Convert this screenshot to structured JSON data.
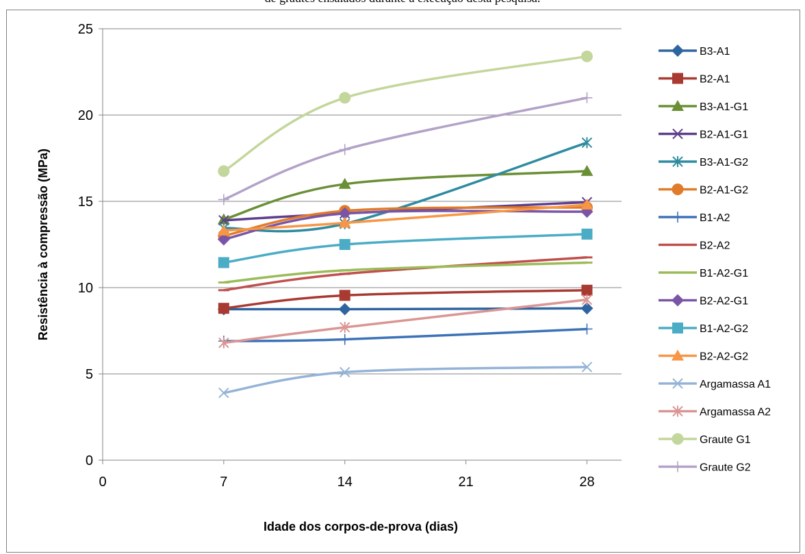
{
  "caption": "de grautes ensaiados durante a execução desta pesquisa.",
  "chart_data": {
    "type": "line",
    "xlabel": "Idade dos corpos-de-prova (dias)",
    "ylabel": "Resistência à compressão (MPa)",
    "xlim": [
      0,
      30
    ],
    "ylim": [
      0,
      25
    ],
    "xticks": [
      0,
      7,
      14,
      21,
      28
    ],
    "yticks": [
      0,
      5,
      10,
      15,
      20,
      25
    ],
    "grid": "horizontal",
    "legend_position": "right",
    "x": [
      7,
      14,
      28
    ],
    "series": [
      {
        "name": "B3-A1",
        "color": "#2e64a0",
        "marker": "diamond",
        "values": [
          8.75,
          8.75,
          8.8
        ]
      },
      {
        "name": "B2-A1",
        "color": "#a83a32",
        "marker": "square",
        "values": [
          8.8,
          9.55,
          9.85
        ]
      },
      {
        "name": "B3-A1-G1",
        "color": "#6a8f35",
        "marker": "triangle",
        "values": [
          13.95,
          16.0,
          16.75
        ]
      },
      {
        "name": "B2-A1-G1",
        "color": "#5e3f8c",
        "marker": "x",
        "values": [
          13.9,
          14.3,
          14.95
        ]
      },
      {
        "name": "B3-A1-G2",
        "color": "#2e8ba0",
        "marker": "asterisk",
        "values": [
          13.45,
          13.7,
          18.4
        ]
      },
      {
        "name": "B2-A1-G2",
        "color": "#e07b29",
        "marker": "circle",
        "values": [
          13.0,
          14.45,
          14.65
        ]
      },
      {
        "name": "B1-A2",
        "color": "#3d72b8",
        "marker": "plus",
        "values": [
          6.9,
          7.0,
          7.6
        ]
      },
      {
        "name": "B2-A2",
        "color": "#c0504d",
        "marker": "dash",
        "values": [
          9.85,
          10.8,
          11.75
        ]
      },
      {
        "name": "B1-A2-G1",
        "color": "#9bbb59",
        "marker": "dash",
        "values": [
          10.3,
          11.0,
          11.45
        ]
      },
      {
        "name": "B2-A2-G1",
        "color": "#7a55a6",
        "marker": "diamond",
        "values": [
          12.8,
          14.3,
          14.4
        ]
      },
      {
        "name": "B1-A2-G2",
        "color": "#4bacc6",
        "marker": "square",
        "values": [
          11.45,
          12.5,
          13.1
        ]
      },
      {
        "name": "B2-A2-G2",
        "color": "#f79646",
        "marker": "triangle",
        "values": [
          13.3,
          13.75,
          14.8
        ]
      },
      {
        "name": "Argamassa A1",
        "color": "#95b3d7",
        "marker": "x",
        "values": [
          3.9,
          5.1,
          5.4
        ]
      },
      {
        "name": "Argamassa A2",
        "color": "#d99694",
        "marker": "asterisk",
        "values": [
          6.8,
          7.7,
          9.3
        ]
      },
      {
        "name": "Graute G1",
        "color": "#c3d69b",
        "marker": "circle",
        "values": [
          16.75,
          21.0,
          23.4
        ]
      },
      {
        "name": "Graute G2",
        "color": "#b2a2c7",
        "marker": "plus",
        "values": [
          15.1,
          18.0,
          21.0
        ]
      }
    ]
  }
}
